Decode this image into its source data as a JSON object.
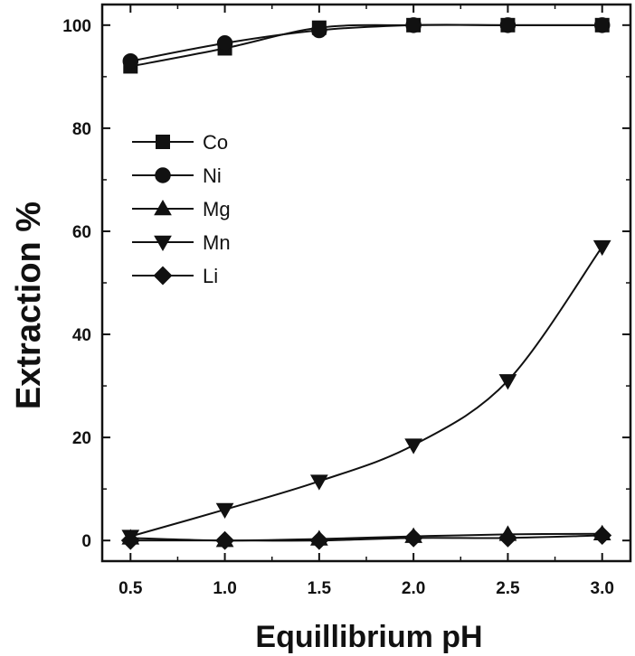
{
  "chart_data": {
    "type": "line",
    "title": "",
    "xlabel": "Equillibrium pH",
    "ylabel": "Extraction %",
    "xlim": [
      0.35,
      3.15
    ],
    "ylim": [
      -4,
      104
    ],
    "xticks": [
      0.5,
      1.0,
      1.5,
      2.0,
      2.5,
      3.0
    ],
    "xtick_labels": [
      "0.5",
      "1.0",
      "1.5",
      "2.0",
      "2.5",
      "3.0"
    ],
    "yticks": [
      0,
      20,
      40,
      60,
      80,
      100
    ],
    "ytick_labels": [
      "0",
      "20",
      "40",
      "60",
      "80",
      "100"
    ],
    "grid": false,
    "legend_position": "upper-left",
    "x": [
      0.5,
      1.0,
      1.5,
      2.0,
      2.5,
      3.0
    ],
    "series": [
      {
        "name": "Co",
        "marker": "square",
        "values": [
          92,
          95.5,
          99.5,
          100,
          100,
          100
        ]
      },
      {
        "name": "Ni",
        "marker": "circle",
        "values": [
          93,
          96.5,
          99,
          100,
          100,
          100
        ]
      },
      {
        "name": "Mg",
        "marker": "triangle-up",
        "values": [
          0.5,
          0,
          0.3,
          0.8,
          1.2,
          1.3
        ]
      },
      {
        "name": "Mn",
        "marker": "triangle-down",
        "values": [
          0.8,
          6,
          11.5,
          18.5,
          31,
          57
        ]
      },
      {
        "name": "Li",
        "marker": "diamond",
        "values": [
          0,
          0,
          0,
          0.5,
          0.5,
          1
        ]
      }
    ]
  }
}
